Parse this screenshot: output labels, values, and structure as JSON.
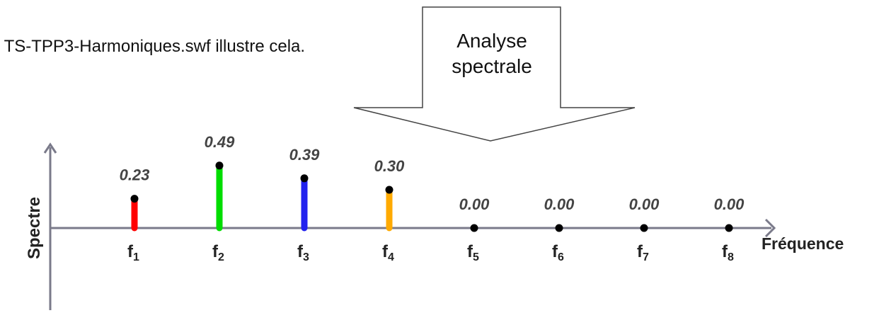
{
  "intro_text": "n TS-TPP3-Harmoniques.swf illustre cela.",
  "arrow": {
    "line1": "Analyse",
    "line2": "spectrale"
  },
  "chart_data": {
    "type": "bar",
    "style": "stem",
    "xlabel": "Fréquence",
    "ylabel": "Spectre",
    "categories": [
      {
        "base": "f",
        "sub": "1"
      },
      {
        "base": "f",
        "sub": "2"
      },
      {
        "base": "f",
        "sub": "3"
      },
      {
        "base": "f",
        "sub": "4"
      },
      {
        "base": "f",
        "sub": "5"
      },
      {
        "base": "f",
        "sub": "6"
      },
      {
        "base": "f",
        "sub": "7"
      },
      {
        "base": "f",
        "sub": "8"
      }
    ],
    "values": [
      0.23,
      0.49,
      0.39,
      0.3,
      0.0,
      0.0,
      0.0,
      0.0
    ],
    "value_labels": [
      "0.23",
      "0.49",
      "0.39",
      "0.30",
      "0.00",
      "0.00",
      "0.00",
      "0.00"
    ],
    "colors": [
      "#ff0000",
      "#00dd00",
      "#2222ee",
      "#ffaa00",
      "#000000",
      "#000000",
      "#000000",
      "#000000"
    ],
    "grid": false
  }
}
